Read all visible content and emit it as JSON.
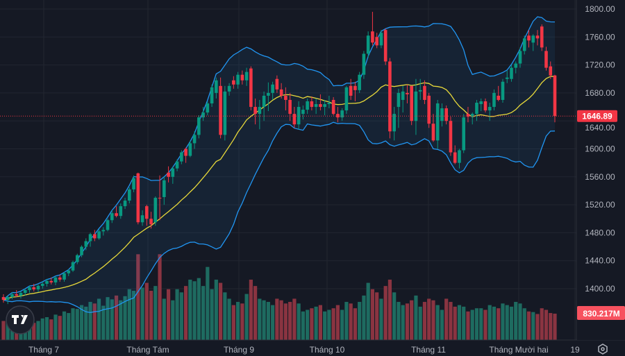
{
  "chart_data": {
    "type": "candlestick",
    "title": "",
    "ylim": [
      1390,
      1805
    ],
    "y_ticks": [
      "1800.00",
      "1760.00",
      "1720.00",
      "1680.00",
      "1640.00",
      "1600.00",
      "1560.00",
      "1520.00",
      "1480.00",
      "1440.00",
      "1400.00"
    ],
    "x_ticks": [
      "Tháng 7",
      "Tháng Tám",
      "Tháng 9",
      "Tháng 10",
      "Tháng 11",
      "Tháng Mười hai",
      "19"
    ],
    "grid": true,
    "indicators": {
      "bollinger": {
        "period": 20,
        "stddev": 2
      }
    },
    "last_price_label": "1646.89",
    "last_volume_label": "830.217M",
    "colors": {
      "up": "#089981",
      "down": "#f23645",
      "vol_up": "#1e6b60",
      "vol_down": "#8a3441",
      "band": "#2196f3",
      "basis": "#e8d93a",
      "background": "#151924"
    },
    "candles_fields": [
      "open",
      "high",
      "low",
      "close",
      "volume_M"
    ],
    "candles": [
      [
        1388,
        1392,
        1380,
        1384,
        600
      ],
      [
        1384,
        1390,
        1378,
        1388,
        650
      ],
      [
        1388,
        1395,
        1385,
        1392,
        560
      ],
      [
        1392,
        1398,
        1388,
        1390,
        700
      ],
      [
        1390,
        1396,
        1386,
        1394,
        520
      ],
      [
        1394,
        1400,
        1390,
        1398,
        580
      ],
      [
        1398,
        1404,
        1394,
        1402,
        620
      ],
      [
        1402,
        1407,
        1396,
        1399,
        540
      ],
      [
        1399,
        1406,
        1395,
        1404,
        600
      ],
      [
        1404,
        1410,
        1400,
        1407,
        680
      ],
      [
        1407,
        1414,
        1403,
        1411,
        720
      ],
      [
        1411,
        1416,
        1406,
        1409,
        650
      ],
      [
        1409,
        1418,
        1405,
        1416,
        800
      ],
      [
        1416,
        1420,
        1410,
        1413,
        760
      ],
      [
        1413,
        1424,
        1410,
        1422,
        900
      ],
      [
        1422,
        1428,
        1418,
        1426,
        850
      ],
      [
        1426,
        1440,
        1424,
        1438,
        1000
      ],
      [
        1438,
        1450,
        1435,
        1448,
        980
      ],
      [
        1448,
        1462,
        1445,
        1460,
        1100
      ],
      [
        1460,
        1472,
        1455,
        1468,
        1050
      ],
      [
        1468,
        1480,
        1460,
        1478,
        1200
      ],
      [
        1478,
        1484,
        1468,
        1472,
        1150
      ],
      [
        1472,
        1485,
        1470,
        1482,
        1300
      ],
      [
        1482,
        1488,
        1476,
        1484,
        1080
      ],
      [
        1484,
        1500,
        1482,
        1498,
        1350
      ],
      [
        1498,
        1512,
        1494,
        1508,
        1280
      ],
      [
        1508,
        1518,
        1502,
        1504,
        1400
      ],
      [
        1504,
        1522,
        1500,
        1518,
        1250
      ],
      [
        1518,
        1530,
        1514,
        1526,
        1380
      ],
      [
        1526,
        1545,
        1522,
        1542,
        1600
      ],
      [
        1542,
        1562,
        1538,
        1558,
        1550
      ],
      [
        1565,
        1566,
        1492,
        1495,
        2700
      ],
      [
        1495,
        1512,
        1490,
        1505,
        1650
      ],
      [
        1518,
        1520,
        1490,
        1500,
        1800
      ],
      [
        1500,
        1510,
        1486,
        1492,
        1550
      ],
      [
        1495,
        1532,
        1490,
        1530,
        1700
      ],
      [
        1530,
        1562,
        1498,
        1529,
        2700
      ],
      [
        1531,
        1560,
        1520,
        1555,
        1300
      ],
      [
        1566,
        1575,
        1552,
        1560,
        1600
      ],
      [
        1560,
        1575,
        1550,
        1572,
        1250
      ],
      [
        1572,
        1585,
        1568,
        1582,
        1600
      ],
      [
        1582,
        1598,
        1578,
        1595,
        1500
      ],
      [
        1600,
        1602,
        1580,
        1590,
        1700
      ],
      [
        1590,
        1612,
        1588,
        1608,
        1900
      ],
      [
        1608,
        1625,
        1600,
        1620,
        1850
      ],
      [
        1620,
        1648,
        1615,
        1645,
        1950
      ],
      [
        1645,
        1660,
        1640,
        1652,
        1700
      ],
      [
        1652,
        1668,
        1648,
        1665,
        2300
      ],
      [
        1665,
        1692,
        1660,
        1688,
        1600
      ],
      [
        1680,
        1702,
        1672,
        1698,
        1900
      ],
      [
        1690,
        1702,
        1615,
        1620,
        1800
      ],
      [
        1620,
        1690,
        1612,
        1682,
        1500
      ],
      [
        1682,
        1694,
        1676,
        1690,
        1300
      ],
      [
        1698,
        1704,
        1686,
        1692,
        1100
      ],
      [
        1692,
        1710,
        1686,
        1706,
        1200
      ],
      [
        1706,
        1712,
        1692,
        1698,
        1150
      ],
      [
        1698,
        1716,
        1690,
        1710,
        1450
      ],
      [
        1715,
        1718,
        1655,
        1660,
        1900
      ],
      [
        1660,
        1672,
        1635,
        1650,
        1700
      ],
      [
        1650,
        1670,
        1628,
        1660,
        1300
      ],
      [
        1660,
        1682,
        1640,
        1676,
        1250
      ],
      [
        1676,
        1695,
        1654,
        1680,
        1200
      ],
      [
        1680,
        1696,
        1670,
        1692,
        1100
      ],
      [
        1700,
        1705,
        1680,
        1685,
        1300
      ],
      [
        1685,
        1694,
        1672,
        1676,
        1250
      ],
      [
        1676,
        1688,
        1655,
        1670,
        1150
      ],
      [
        1670,
        1680,
        1640,
        1650,
        1200
      ],
      [
        1650,
        1660,
        1630,
        1635,
        1300
      ],
      [
        1635,
        1668,
        1628,
        1660,
        1150
      ],
      [
        1650,
        1662,
        1642,
        1656,
        900
      ],
      [
        1656,
        1672,
        1650,
        1668,
        950
      ],
      [
        1668,
        1675,
        1655,
        1660,
        1000
      ],
      [
        1660,
        1672,
        1650,
        1664,
        1050
      ],
      [
        1664,
        1678,
        1655,
        1660,
        1100
      ],
      [
        1660,
        1670,
        1648,
        1664,
        900
      ],
      [
        1664,
        1676,
        1658,
        1666,
        950
      ],
      [
        1670,
        1674,
        1648,
        1650,
        1000
      ],
      [
        1650,
        1660,
        1638,
        1645,
        1100
      ],
      [
        1645,
        1658,
        1640,
        1655,
        950
      ],
      [
        1655,
        1690,
        1650,
        1688,
        1200
      ],
      [
        1690,
        1700,
        1670,
        1676,
        1150
      ],
      [
        1690,
        1696,
        1668,
        1684,
        1000
      ],
      [
        1684,
        1710,
        1680,
        1706,
        1200
      ],
      [
        1706,
        1740,
        1700,
        1736,
        1400
      ],
      [
        1736,
        1768,
        1730,
        1762,
        1800
      ],
      [
        1768,
        1796,
        1748,
        1752,
        1600
      ],
      [
        1760,
        1766,
        1744,
        1748,
        1500
      ],
      [
        1748,
        1770,
        1744,
        1766,
        1300
      ],
      [
        1770,
        1772,
        1720,
        1725,
        1700
      ],
      [
        1725,
        1730,
        1615,
        1625,
        1900
      ],
      [
        1625,
        1660,
        1612,
        1650,
        1500
      ],
      [
        1660,
        1686,
        1630,
        1680,
        1200
      ],
      [
        1670,
        1690,
        1652,
        1682,
        1100
      ],
      [
        1680,
        1692,
        1665,
        1678,
        1150
      ],
      [
        1690,
        1690,
        1634,
        1640,
        1250
      ],
      [
        1640,
        1700,
        1620,
        1682,
        1400
      ],
      [
        1682,
        1700,
        1670,
        1684,
        1050
      ],
      [
        1690,
        1698,
        1664,
        1670,
        1200
      ],
      [
        1676,
        1680,
        1630,
        1636,
        1300
      ],
      [
        1636,
        1650,
        1610,
        1612,
        1250
      ],
      [
        1612,
        1670,
        1600,
        1665,
        1100
      ],
      [
        1640,
        1665,
        1632,
        1658,
        950
      ],
      [
        1658,
        1662,
        1635,
        1640,
        1300
      ],
      [
        1640,
        1646,
        1590,
        1595,
        1200
      ],
      [
        1595,
        1605,
        1578,
        1580,
        1050
      ],
      [
        1580,
        1600,
        1572,
        1598,
        1100
      ],
      [
        1598,
        1650,
        1594,
        1645,
        1050
      ],
      [
        1650,
        1660,
        1638,
        1646,
        900
      ],
      [
        1646,
        1652,
        1635,
        1650,
        950
      ],
      [
        1650,
        1670,
        1640,
        1666,
        1000
      ],
      [
        1664,
        1672,
        1654,
        1668,
        1000
      ],
      [
        1668,
        1672,
        1652,
        1655,
        950
      ],
      [
        1655,
        1666,
        1640,
        1660,
        1100
      ],
      [
        1660,
        1685,
        1655,
        1680,
        1050
      ],
      [
        1676,
        1690,
        1668,
        1670,
        1000
      ],
      [
        1670,
        1700,
        1666,
        1696,
        1150
      ],
      [
        1700,
        1712,
        1694,
        1702,
        1100
      ],
      [
        1700,
        1720,
        1696,
        1716,
        1050
      ],
      [
        1716,
        1725,
        1708,
        1722,
        1200
      ],
      [
        1722,
        1745,
        1716,
        1740,
        1150
      ],
      [
        1740,
        1762,
        1735,
        1758,
        1000
      ],
      [
        1762,
        1770,
        1745,
        1755,
        900
      ],
      [
        1752,
        1764,
        1740,
        1762,
        880
      ],
      [
        1762,
        1770,
        1748,
        1758,
        820
      ],
      [
        1775,
        1778,
        1740,
        1745,
        1000
      ],
      [
        1740,
        1746,
        1712,
        1716,
        950
      ],
      [
        1718,
        1725,
        1700,
        1705,
        850
      ],
      [
        1705,
        1706,
        1638,
        1646.89,
        830.217
      ]
    ]
  }
}
